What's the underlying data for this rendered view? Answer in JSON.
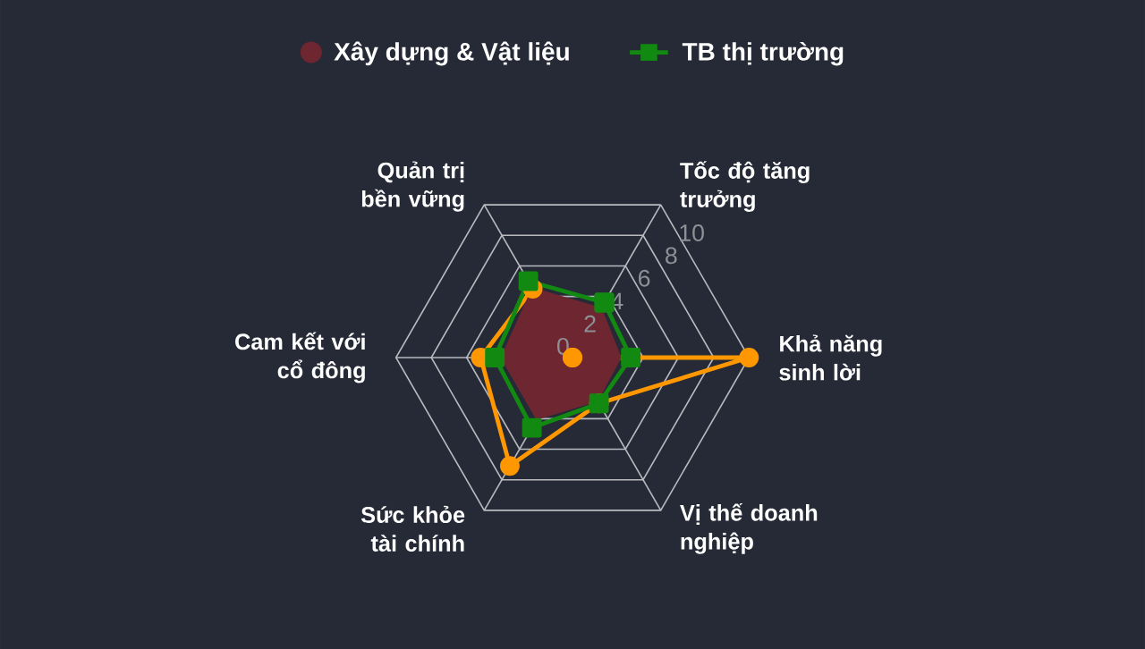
{
  "chart_data": {
    "type": "radar",
    "categories": [
      "Tốc độ tăng trưởng",
      "Khả năng sinh lời",
      "Vị thế doanh nghiệp",
      "Sức khỏe tài chính",
      "Cam kết với cổ đông",
      "Quản trị bền vững"
    ],
    "series": [
      {
        "color": "#ff9800",
        "marker": "circle",
        "values": [
          0,
          10,
          3,
          7.1,
          5.2,
          4.5
        ]
      },
      {
        "name": "Xây dựng & Vật liệu",
        "type": "area",
        "color": "#6e2630",
        "marker": "none",
        "values": [
          3.2,
          2.7,
          2.8,
          4.0,
          4.0,
          4.5
        ]
      },
      {
        "name": "TB thị trường",
        "color": "#128a12",
        "marker": "square",
        "values": [
          3.6,
          3.3,
          3.0,
          4.6,
          4.4,
          5.0
        ]
      }
    ],
    "ylim": [
      0,
      10
    ],
    "yticks": [
      0,
      2,
      4,
      6,
      8,
      10
    ],
    "grid": true,
    "legend": "top"
  }
}
